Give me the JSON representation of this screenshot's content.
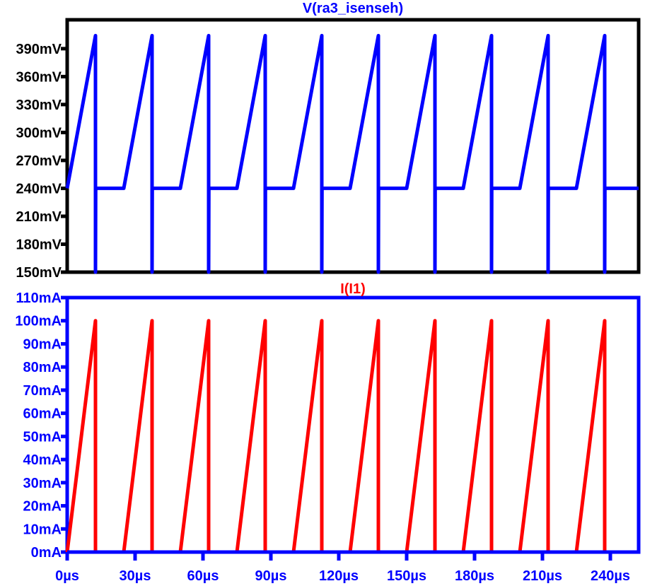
{
  "colors": {
    "voltage": "#0000ff",
    "current": "#ff0000",
    "top_frame": "#000000",
    "bottom_frame": "#0000ff",
    "top_labels": "#000000",
    "bottom_labels": "#0000ff"
  },
  "chart_data": [
    {
      "type": "line",
      "title": "V(ra3_isenseh)",
      "xlim": [
        0,
        252.5
      ],
      "ylim": [
        150,
        421
      ],
      "x_unit": "µs",
      "y_unit": "mV",
      "grid": false,
      "y_ticks": [
        150,
        180,
        210,
        240,
        270,
        300,
        330,
        360,
        390
      ],
      "y_tick_labels": [
        "150mV",
        "180mV",
        "210mV",
        "240mV",
        "270mV",
        "300mV",
        "330mV",
        "360mV",
        "390mV"
      ],
      "series": [
        {
          "name": "V(ra3_isenseh)",
          "points": [
            [
              0,
              240
            ],
            [
              12.5,
              404
            ],
            [
              12.5,
              150
            ],
            [
              12.6,
              240
            ],
            [
              25,
              240
            ],
            [
              37.5,
              404
            ],
            [
              37.5,
              150
            ],
            [
              37.6,
              240
            ],
            [
              50,
              240
            ],
            [
              62.5,
              404
            ],
            [
              62.5,
              150
            ],
            [
              62.6,
              240
            ],
            [
              75,
              240
            ],
            [
              87.5,
              404
            ],
            [
              87.5,
              150
            ],
            [
              87.6,
              240
            ],
            [
              100,
              240
            ],
            [
              112.5,
              404
            ],
            [
              112.5,
              150
            ],
            [
              112.6,
              240
            ],
            [
              125,
              240
            ],
            [
              137.5,
              404
            ],
            [
              137.5,
              150
            ],
            [
              137.6,
              240
            ],
            [
              150,
              240
            ],
            [
              162.5,
              404
            ],
            [
              162.5,
              150
            ],
            [
              162.6,
              240
            ],
            [
              175,
              240
            ],
            [
              187.5,
              404
            ],
            [
              187.5,
              150
            ],
            [
              187.6,
              240
            ],
            [
              200,
              240
            ],
            [
              212.5,
              404
            ],
            [
              212.5,
              150
            ],
            [
              212.6,
              240
            ],
            [
              225,
              240
            ],
            [
              237.5,
              404
            ],
            [
              237.5,
              150
            ],
            [
              237.6,
              240
            ],
            [
              252.5,
              240
            ]
          ]
        }
      ]
    },
    {
      "type": "line",
      "title": "I(I1)",
      "xlim": [
        0,
        252.5
      ],
      "ylim": [
        0,
        110
      ],
      "x_unit": "µs",
      "y_unit": "mA",
      "grid": false,
      "x_ticks": [
        0,
        30,
        60,
        90,
        120,
        150,
        180,
        210,
        240
      ],
      "x_tick_labels": [
        "0µs",
        "30µs",
        "60µs",
        "90µs",
        "120µs",
        "150µs",
        "180µs",
        "210µs",
        "240µs"
      ],
      "y_ticks": [
        0,
        10,
        20,
        30,
        40,
        50,
        60,
        70,
        80,
        90,
        100,
        110
      ],
      "y_tick_labels": [
        "0mA",
        "10mA",
        "20mA",
        "30mA",
        "40mA",
        "50mA",
        "60mA",
        "70mA",
        "80mA",
        "90mA",
        "100mA",
        "110mA"
      ],
      "series": [
        {
          "name": "I(I1)",
          "points": [
            [
              0,
              0
            ],
            [
              12.5,
              100
            ],
            [
              12.5,
              0
            ],
            [
              25,
              0
            ],
            [
              37.5,
              100
            ],
            [
              37.5,
              0
            ],
            [
              50,
              0
            ],
            [
              62.5,
              100
            ],
            [
              62.5,
              0
            ],
            [
              75,
              0
            ],
            [
              87.5,
              100
            ],
            [
              87.5,
              0
            ],
            [
              100,
              0
            ],
            [
              112.5,
              100
            ],
            [
              112.5,
              0
            ],
            [
              125,
              0
            ],
            [
              137.5,
              100
            ],
            [
              137.5,
              0
            ],
            [
              150,
              0
            ],
            [
              162.5,
              100
            ],
            [
              162.5,
              0
            ],
            [
              175,
              0
            ],
            [
              187.5,
              100
            ],
            [
              187.5,
              0
            ],
            [
              200,
              0
            ],
            [
              212.5,
              100
            ],
            [
              212.5,
              0
            ],
            [
              225,
              0
            ],
            [
              237.5,
              100
            ],
            [
              237.5,
              0
            ],
            [
              252.5,
              0
            ]
          ]
        }
      ]
    }
  ]
}
